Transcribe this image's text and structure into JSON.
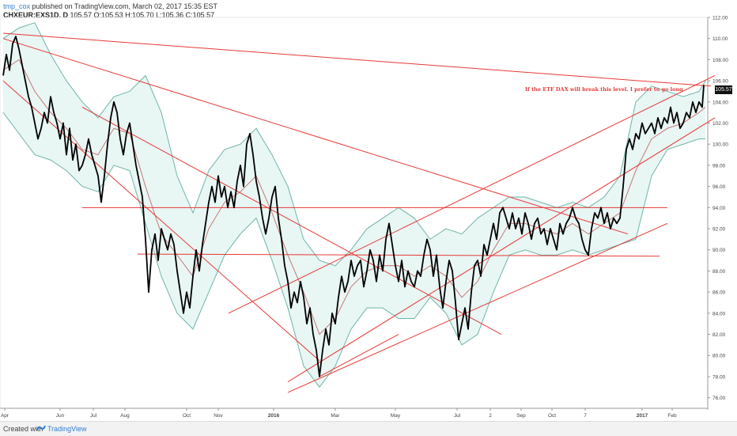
{
  "header": {
    "user": "tmp_cox",
    "published": "published on TradingView.com, March 02, 2017 15:35 EST"
  },
  "ohlc": {
    "symbol": "CHXEUR:EXS1D, D",
    "values": "105.57 O:105.53 H:105.70 L:105.36 C:105.57"
  },
  "footer": {
    "created_with": "Created with",
    "brand": "TradingView"
  },
  "chart_data": {
    "type": "line",
    "ylim": [
      75,
      112
    ],
    "y_ticks": [
      "76.00",
      "78.00",
      "80.00",
      "82.00",
      "84.00",
      "86.00",
      "88.00",
      "90.00",
      "92.00",
      "94.00",
      "96.00",
      "98.00",
      "100.00",
      "102.00",
      "104.00",
      "106.00",
      "108.00",
      "110.00",
      "112.00"
    ],
    "x_ticks": [
      "Apr",
      "Jun",
      "Jul",
      "Aug",
      "Oct",
      "Nov",
      "2016",
      "Mar",
      "May",
      "Jul",
      "2",
      "Sep",
      "Oct",
      "7",
      "2017",
      "Feb"
    ],
    "last_price": "105.57",
    "annotation": "If the ETF DAX will break this level. I prefer to go long",
    "price": [
      [
        0,
        106.5
      ],
      [
        4,
        108.5
      ],
      [
        8,
        107.0
      ],
      [
        12,
        109.5
      ],
      [
        16,
        110.2
      ],
      [
        20,
        109.0
      ],
      [
        24,
        107.5
      ],
      [
        28,
        106.0
      ],
      [
        32,
        104.5
      ],
      [
        36,
        103.5
      ],
      [
        40,
        102.0
      ],
      [
        44,
        100.5
      ],
      [
        48,
        101.5
      ],
      [
        52,
        103.0
      ],
      [
        56,
        102.0
      ],
      [
        60,
        104.5
      ],
      [
        64,
        103.0
      ],
      [
        68,
        102.0
      ],
      [
        72,
        100.5
      ],
      [
        76,
        102.0
      ],
      [
        80,
        99.0
      ],
      [
        84,
        101.5
      ],
      [
        88,
        98.5
      ],
      [
        92,
        100.0
      ],
      [
        96,
        97.5
      ],
      [
        100,
        98.0
      ],
      [
        104,
        99.0
      ],
      [
        108,
        100.5
      ],
      [
        112,
        99.0
      ],
      [
        116,
        98.0
      ],
      [
        120,
        97.0
      ],
      [
        124,
        94.5
      ],
      [
        128,
        97.0
      ],
      [
        132,
        100.0
      ],
      [
        136,
        102.5
      ],
      [
        140,
        104.0
      ],
      [
        144,
        103.0
      ],
      [
        148,
        100.5
      ],
      [
        152,
        99.0
      ],
      [
        156,
        101.0
      ],
      [
        160,
        102.0
      ],
      [
        164,
        100.0
      ],
      [
        168,
        98.0
      ],
      [
        172,
        96.5
      ],
      [
        176,
        95.0
      ],
      [
        180,
        91.0
      ],
      [
        184,
        86.0
      ],
      [
        188,
        90.0
      ],
      [
        192,
        91.5
      ],
      [
        196,
        89.0
      ],
      [
        200,
        92.0
      ],
      [
        204,
        91.0
      ],
      [
        208,
        90.0
      ],
      [
        212,
        91.5
      ],
      [
        216,
        90.5
      ],
      [
        220,
        88.0
      ],
      [
        224,
        86.0
      ],
      [
        228,
        84.0
      ],
      [
        232,
        86.0
      ],
      [
        236,
        84.5
      ],
      [
        240,
        87.5
      ],
      [
        244,
        90.0
      ],
      [
        248,
        88.0
      ],
      [
        252,
        90.5
      ],
      [
        256,
        92.5
      ],
      [
        260,
        94.5
      ],
      [
        264,
        96.0
      ],
      [
        268,
        94.5
      ],
      [
        272,
        97.0
      ],
      [
        276,
        95.0
      ],
      [
        280,
        96.0
      ],
      [
        284,
        94.0
      ],
      [
        288,
        95.5
      ],
      [
        292,
        94.0
      ],
      [
        296,
        96.5
      ],
      [
        300,
        98.0
      ],
      [
        304,
        96.0
      ],
      [
        308,
        100.0
      ],
      [
        312,
        101.0
      ],
      [
        316,
        99.0
      ],
      [
        320,
        96.5
      ],
      [
        324,
        95.0
      ],
      [
        328,
        93.0
      ],
      [
        332,
        91.5
      ],
      [
        336,
        93.0
      ],
      [
        340,
        95.0
      ],
      [
        344,
        96.0
      ],
      [
        348,
        93.0
      ],
      [
        352,
        91.0
      ],
      [
        356,
        88.5
      ],
      [
        360,
        87.0
      ],
      [
        364,
        84.5
      ],
      [
        368,
        86.0
      ],
      [
        372,
        85.0
      ],
      [
        376,
        87.0
      ],
      [
        380,
        85.5
      ],
      [
        384,
        83.0
      ],
      [
        388,
        84.5
      ],
      [
        392,
        82.0
      ],
      [
        396,
        80.5
      ],
      [
        400,
        78.0
      ],
      [
        404,
        80.5
      ],
      [
        408,
        82.5
      ],
      [
        412,
        81.0
      ],
      [
        416,
        84.0
      ],
      [
        420,
        83.0
      ],
      [
        424,
        85.5
      ],
      [
        428,
        87.5
      ],
      [
        432,
        86.0
      ],
      [
        436,
        87.0
      ],
      [
        440,
        89.0
      ],
      [
        444,
        87.5
      ],
      [
        448,
        88.5
      ],
      [
        452,
        89.0
      ],
      [
        456,
        86.5
      ],
      [
        460,
        88.0
      ],
      [
        464,
        90.0
      ],
      [
        468,
        89.0
      ],
      [
        472,
        87.0
      ],
      [
        476,
        89.5
      ],
      [
        480,
        88.0
      ],
      [
        484,
        91.0
      ],
      [
        488,
        92.5
      ],
      [
        492,
        90.5
      ],
      [
        496,
        88.5
      ],
      [
        500,
        87.0
      ],
      [
        504,
        89.0
      ],
      [
        508,
        86.5
      ],
      [
        512,
        88.0
      ],
      [
        516,
        87.0
      ],
      [
        520,
        86.5
      ],
      [
        524,
        88.0
      ],
      [
        528,
        87.5
      ],
      [
        532,
        89.5
      ],
      [
        536,
        91.0
      ],
      [
        540,
        90.0
      ],
      [
        544,
        87.5
      ],
      [
        548,
        89.5
      ],
      [
        552,
        86.5
      ],
      [
        556,
        84.5
      ],
      [
        560,
        87.0
      ],
      [
        564,
        89.0
      ],
      [
        568,
        88.0
      ],
      [
        572,
        85.0
      ],
      [
        576,
        81.5
      ],
      [
        580,
        83.0
      ],
      [
        584,
        84.5
      ],
      [
        588,
        82.5
      ],
      [
        592,
        86.0
      ],
      [
        596,
        88.5
      ],
      [
        600,
        89.0
      ],
      [
        604,
        87.5
      ],
      [
        608,
        90.5
      ],
      [
        612,
        89.5
      ],
      [
        616,
        91.0
      ],
      [
        620,
        92.5
      ],
      [
        624,
        91.0
      ],
      [
        628,
        93.5
      ],
      [
        632,
        94.0
      ],
      [
        636,
        93.0
      ],
      [
        640,
        92.0
      ],
      [
        644,
        93.5
      ],
      [
        648,
        92.0
      ],
      [
        652,
        93.0
      ],
      [
        656,
        91.5
      ],
      [
        660,
        93.5
      ],
      [
        664,
        92.5
      ],
      [
        668,
        91.0
      ],
      [
        672,
        92.5
      ],
      [
        676,
        93.0
      ],
      [
        680,
        91.5
      ],
      [
        684,
        92.0
      ],
      [
        688,
        90.5
      ],
      [
        692,
        92.0
      ],
      [
        696,
        91.0
      ],
      [
        700,
        90.0
      ],
      [
        704,
        92.5
      ],
      [
        708,
        91.5
      ],
      [
        712,
        92.5
      ],
      [
        716,
        93.0
      ],
      [
        720,
        94.0
      ],
      [
        724,
        93.0
      ],
      [
        728,
        92.5
      ],
      [
        732,
        91.0
      ],
      [
        736,
        90.0
      ],
      [
        740,
        89.5
      ],
      [
        744,
        92.0
      ],
      [
        748,
        93.5
      ],
      [
        752,
        93.0
      ],
      [
        756,
        94.0
      ],
      [
        760,
        92.5
      ],
      [
        764,
        93.5
      ],
      [
        768,
        92.0
      ],
      [
        772,
        93.0
      ],
      [
        776,
        92.5
      ],
      [
        780,
        93.0
      ],
      [
        784,
        96.0
      ],
      [
        788,
        99.5
      ],
      [
        792,
        100.5
      ],
      [
        796,
        99.5
      ],
      [
        800,
        101.0
      ],
      [
        804,
        100.5
      ],
      [
        808,
        102.0
      ],
      [
        812,
        101.0
      ],
      [
        816,
        101.5
      ],
      [
        820,
        102.0
      ],
      [
        824,
        101.0
      ],
      [
        828,
        102.5
      ],
      [
        832,
        101.5
      ],
      [
        836,
        102.5
      ],
      [
        840,
        102.0
      ],
      [
        844,
        103.5
      ],
      [
        848,
        102.0
      ],
      [
        852,
        103.0
      ],
      [
        856,
        101.5
      ],
      [
        860,
        102.0
      ],
      [
        864,
        103.0
      ],
      [
        868,
        102.5
      ],
      [
        872,
        104.0
      ],
      [
        876,
        103.0
      ],
      [
        880,
        104.0
      ],
      [
        884,
        103.5
      ],
      [
        886,
        105.6
      ]
    ],
    "ma": [
      [
        0,
        107.0
      ],
      [
        20,
        108.0
      ],
      [
        40,
        105.0
      ],
      [
        60,
        103.0
      ],
      [
        80,
        101.5
      ],
      [
        100,
        99.5
      ],
      [
        120,
        99.0
      ],
      [
        140,
        101.5
      ],
      [
        160,
        101.0
      ],
      [
        180,
        96.0
      ],
      [
        200,
        91.5
      ],
      [
        220,
        89.5
      ],
      [
        240,
        87.5
      ],
      [
        260,
        92.0
      ],
      [
        280,
        94.5
      ],
      [
        300,
        95.5
      ],
      [
        320,
        97.0
      ],
      [
        340,
        93.5
      ],
      [
        360,
        89.5
      ],
      [
        380,
        86.0
      ],
      [
        400,
        82.0
      ],
      [
        420,
        83.5
      ],
      [
        440,
        86.5
      ],
      [
        460,
        88.0
      ],
      [
        480,
        88.5
      ],
      [
        500,
        88.5
      ],
      [
        520,
        87.5
      ],
      [
        540,
        88.5
      ],
      [
        560,
        87.5
      ],
      [
        580,
        85.5
      ],
      [
        600,
        87.0
      ],
      [
        620,
        90.0
      ],
      [
        640,
        92.5
      ],
      [
        660,
        92.5
      ],
      [
        680,
        92.0
      ],
      [
        700,
        91.5
      ],
      [
        720,
        92.5
      ],
      [
        740,
        91.5
      ],
      [
        760,
        92.5
      ],
      [
        780,
        93.5
      ],
      [
        800,
        97.5
      ],
      [
        820,
        100.5
      ],
      [
        840,
        101.5
      ],
      [
        860,
        102.0
      ],
      [
        880,
        103.0
      ],
      [
        888,
        103.5
      ]
    ],
    "bb_upper": [
      [
        0,
        110.0
      ],
      [
        20,
        111.0
      ],
      [
        40,
        111.5
      ],
      [
        60,
        108.5
      ],
      [
        80,
        106.0
      ],
      [
        100,
        104.0
      ],
      [
        120,
        102.5
      ],
      [
        140,
        104.5
      ],
      [
        160,
        105.0
      ],
      [
        180,
        106.5
      ],
      [
        200,
        103.0
      ],
      [
        220,
        97.0
      ],
      [
        240,
        93.5
      ],
      [
        260,
        97.5
      ],
      [
        280,
        99.5
      ],
      [
        300,
        100.0
      ],
      [
        320,
        101.5
      ],
      [
        340,
        99.0
      ],
      [
        360,
        96.0
      ],
      [
        380,
        91.0
      ],
      [
        400,
        89.0
      ],
      [
        420,
        88.5
      ],
      [
        440,
        90.0
      ],
      [
        460,
        92.0
      ],
      [
        480,
        93.0
      ],
      [
        500,
        94.0
      ],
      [
        520,
        93.0
      ],
      [
        540,
        91.0
      ],
      [
        560,
        92.0
      ],
      [
        580,
        91.5
      ],
      [
        600,
        93.0
      ],
      [
        620,
        94.0
      ],
      [
        640,
        95.0
      ],
      [
        660,
        95.0
      ],
      [
        680,
        94.5
      ],
      [
        700,
        94.0
      ],
      [
        720,
        94.5
      ],
      [
        740,
        94.0
      ],
      [
        760,
        95.0
      ],
      [
        780,
        97.0
      ],
      [
        800,
        104.0
      ],
      [
        820,
        105.5
      ],
      [
        840,
        105.0
      ],
      [
        860,
        104.5
      ],
      [
        880,
        105.0
      ],
      [
        888,
        106.0
      ]
    ],
    "bb_lower": [
      [
        0,
        103.0
      ],
      [
        20,
        101.0
      ],
      [
        40,
        99.0
      ],
      [
        60,
        98.5
      ],
      [
        80,
        97.5
      ],
      [
        100,
        96.0
      ],
      [
        120,
        95.5
      ],
      [
        140,
        98.0
      ],
      [
        160,
        97.5
      ],
      [
        180,
        92.5
      ],
      [
        200,
        87.5
      ],
      [
        220,
        84.0
      ],
      [
        240,
        82.5
      ],
      [
        260,
        86.0
      ],
      [
        280,
        89.5
      ],
      [
        300,
        91.5
      ],
      [
        320,
        93.0
      ],
      [
        340,
        89.0
      ],
      [
        360,
        84.5
      ],
      [
        380,
        79.0
      ],
      [
        400,
        77.0
      ],
      [
        420,
        79.0
      ],
      [
        440,
        82.5
      ],
      [
        460,
        84.5
      ],
      [
        480,
        84.5
      ],
      [
        500,
        83.5
      ],
      [
        520,
        83.5
      ],
      [
        540,
        85.5
      ],
      [
        560,
        84.0
      ],
      [
        580,
        81.0
      ],
      [
        600,
        82.0
      ],
      [
        620,
        86.0
      ],
      [
        640,
        89.5
      ],
      [
        660,
        90.0
      ],
      [
        680,
        89.5
      ],
      [
        700,
        89.5
      ],
      [
        720,
        90.0
      ],
      [
        740,
        89.5
      ],
      [
        760,
        90.0
      ],
      [
        780,
        90.5
      ],
      [
        800,
        91.0
      ],
      [
        820,
        97.0
      ],
      [
        840,
        99.5
      ],
      [
        860,
        100.0
      ],
      [
        880,
        100.5
      ],
      [
        888,
        100.5
      ]
    ],
    "trendlines": [
      {
        "name": "upper-descending",
        "from": [
          0,
          110.5
        ],
        "to": [
          895,
          105.5
        ]
      },
      {
        "name": "long-descending-1",
        "from": [
          0,
          110.0
        ],
        "to": [
          790,
          91.5
        ]
      },
      {
        "name": "long-descending-2",
        "from": [
          0,
          106.0
        ],
        "to": [
          400,
          79.5
        ]
      },
      {
        "name": "steep-descending",
        "from": [
          100,
          103.5
        ],
        "to": [
          630,
          82.0
        ]
      },
      {
        "name": "horizontal-94",
        "from": [
          100,
          94.0
        ],
        "to": [
          840,
          94.0
        ]
      },
      {
        "name": "horizontal-89.5",
        "from": [
          170,
          89.6
        ],
        "to": [
          830,
          89.4
        ]
      },
      {
        "name": "rising-1",
        "from": [
          285,
          84.0
        ],
        "to": [
          900,
          106.5
        ]
      },
      {
        "name": "rising-2",
        "from": [
          360,
          77.5
        ],
        "to": [
          900,
          102.5
        ]
      },
      {
        "name": "rising-3",
        "from": [
          360,
          76.5
        ],
        "to": [
          840,
          92.5
        ]
      },
      {
        "name": "rising-4",
        "from": [
          400,
          78.0
        ],
        "to": [
          500,
          82.0
        ]
      }
    ]
  }
}
